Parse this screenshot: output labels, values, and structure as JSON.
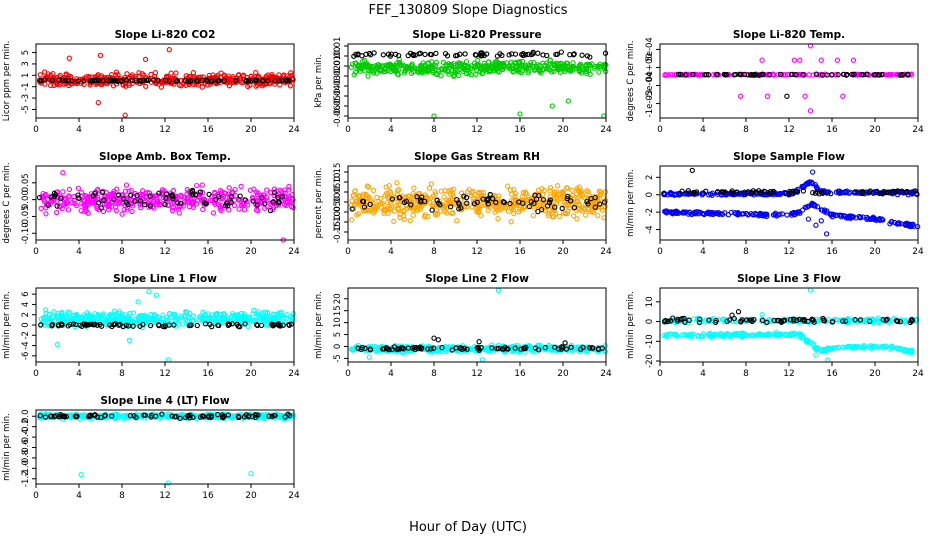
{
  "figure": {
    "title": "FEF_130809  Slope Diagnostics",
    "xlabel": "Hour of Day (UTC)"
  },
  "chart_data": [
    {
      "type": "scatter",
      "title": "Slope Li-820 CO2",
      "ylabel": "Licor ppm per min.",
      "xlim": [
        0,
        24
      ],
      "ylim": [
        -6.5,
        6.5
      ],
      "yticks": [
        "-5",
        "-3",
        "-1",
        "1",
        "3",
        "5"
      ],
      "ytick_values": [
        -5,
        -3,
        -1,
        1,
        3,
        5
      ],
      "xticks": [
        0,
        4,
        8,
        12,
        16,
        20,
        24
      ],
      "series": [
        {
          "color": "#ff0000",
          "model": {
            "kind": "band",
            "base": 0.2,
            "amp": 1.6,
            "n": 420,
            "outliers": [
              [
                6.0,
                4.5
              ],
              [
                8.3,
                -6.0
              ],
              [
                12.4,
                5.5
              ],
              [
                5.8,
                -3.8
              ],
              [
                10.2,
                3.8
              ],
              [
                3.1,
                4.0
              ]
            ]
          }
        },
        {
          "color": "#000000",
          "model": {
            "kind": "band",
            "base": 0.05,
            "amp": 0.15,
            "n": 80
          }
        }
      ]
    },
    {
      "type": "scatter",
      "title": "Slope Li-820 Pressure",
      "ylabel": "kPa per min.",
      "xlim": [
        0,
        24
      ],
      "ylim": [
        -0.062,
        0.012
      ],
      "yticks": [
        "-0.06",
        "-0.05",
        "-0.04",
        "-0.03",
        "-0.02",
        "-0.01",
        "0.00",
        "0.01"
      ],
      "ytick_values": [
        -0.06,
        -0.05,
        -0.04,
        -0.03,
        -0.02,
        -0.01,
        0.0,
        0.01
      ],
      "xticks": [
        0,
        4,
        8,
        12,
        16,
        20,
        24
      ],
      "series": [
        {
          "color": "#00cc00",
          "model": {
            "kind": "band",
            "base": -0.012,
            "amp": 0.01,
            "n": 420,
            "outliers": [
              [
                8.0,
                -0.06
              ],
              [
                16.0,
                -0.058
              ],
              [
                23.8,
                -0.06
              ],
              [
                19.0,
                -0.05
              ],
              [
                20.5,
                -0.045
              ]
            ]
          }
        },
        {
          "color": "#000000",
          "model": {
            "kind": "band",
            "base": 0.0015,
            "amp": 0.003,
            "n": 70
          }
        }
      ]
    },
    {
      "type": "scatter",
      "title": "Slope Li-820 Temp.",
      "ylabel": "degrees C per min.",
      "xlim": [
        0,
        24
      ],
      "ylim": [
        -0.0014,
        0.00065
      ],
      "yticks": [
        "-1e-03",
        "-5e-04",
        "0e+00",
        "5e-04"
      ],
      "ytick_values": [
        -0.001,
        -0.0005,
        0.0,
        0.0005
      ],
      "xticks": [
        0,
        4,
        8,
        12,
        16,
        20,
        24
      ],
      "series": [
        {
          "color": "#ff00ff",
          "model": {
            "kind": "band",
            "base": -0.0002,
            "amp": 2e-05,
            "n": 140,
            "outliers": [
              [
                9.5,
                0.0002
              ],
              [
                12.5,
                0.0002
              ],
              [
                13.0,
                0.0002
              ],
              [
                15.0,
                0.0002
              ],
              [
                16.5,
                0.0002
              ],
              [
                18.0,
                0.0002
              ],
              [
                7.5,
                -0.0008
              ],
              [
                10.0,
                -0.0008
              ],
              [
                14.0,
                -0.0012
              ],
              [
                17.0,
                -0.0008
              ],
              [
                14.0,
                0.0006
              ],
              [
                13.5,
                -0.0008
              ]
            ]
          }
        },
        {
          "color": "#000000",
          "model": {
            "kind": "band",
            "base": -0.0002,
            "amp": 2e-05,
            "n": 60,
            "outliers": [
              [
                11.8,
                -0.0008
              ]
            ]
          }
        }
      ]
    },
    {
      "type": "scatter",
      "title": "Slope Amb. Box Temp.",
      "ylabel": "degrees C per min.",
      "xlim": [
        0,
        24
      ],
      "ylim": [
        -0.12,
        0.1
      ],
      "yticks": [
        "-0.10",
        "-0.05",
        "0.00",
        "0.05"
      ],
      "ytick_values": [
        -0.1,
        -0.05,
        0.0,
        0.05
      ],
      "xticks": [
        0,
        4,
        8,
        12,
        16,
        20,
        24
      ],
      "series": [
        {
          "color": "#ff00ff",
          "model": {
            "kind": "band",
            "base": 0.0,
            "amp": 0.05,
            "n": 420,
            "outliers": [
              [
                23.0,
                -0.12
              ],
              [
                2.5,
                0.08
              ]
            ]
          }
        },
        {
          "color": "#000000",
          "model": {
            "kind": "band",
            "base": 0.0,
            "amp": 0.04,
            "n": 70
          }
        }
      ]
    },
    {
      "type": "scatter",
      "title": "Slope Gas Stream RH",
      "ylabel": "percent per min.",
      "xlim": [
        0,
        24
      ],
      "ylim": [
        -0.19,
        0.18
      ],
      "yticks": [
        "-0.15",
        "-0.10",
        "-0.05",
        "0.00",
        "0.05",
        "0.10",
        "0.15"
      ],
      "ytick_values": [
        -0.15,
        -0.1,
        -0.05,
        0.0,
        0.05,
        0.1,
        0.15
      ],
      "xticks": [
        0,
        4,
        8,
        12,
        16,
        20,
        24
      ],
      "series": [
        {
          "color": "#ffa500",
          "model": {
            "kind": "band",
            "base": 0.0,
            "amp": 0.11,
            "n": 520
          }
        },
        {
          "color": "#000000",
          "model": {
            "kind": "band",
            "base": 0.0,
            "amp": 0.06,
            "n": 70
          }
        }
      ]
    },
    {
      "type": "scatter",
      "title": "Slope Sample Flow",
      "ylabel": "ml/min per min.",
      "xlim": [
        0,
        24
      ],
      "ylim": [
        -5.2,
        3.3
      ],
      "yticks": [
        "-4",
        "-2",
        "0",
        "2"
      ],
      "ytick_values": [
        -4,
        -2,
        0,
        2
      ],
      "xticks": [
        0,
        4,
        8,
        12,
        16,
        20,
        24
      ],
      "series": [
        {
          "color": "#0000ff",
          "model": {
            "kind": "line",
            "points": [
              [
                0,
                0.1
              ],
              [
                12,
                0.1
              ],
              [
                13,
                0.6
              ],
              [
                14,
                1.5
              ],
              [
                15,
                0.3
              ],
              [
                24,
                0.2
              ]
            ],
            "amp": 0.25,
            "n": 230
          }
        },
        {
          "color": "#0000ff",
          "model": {
            "kind": "line",
            "points": [
              [
                0,
                -2.0
              ],
              [
                12,
                -2.3
              ],
              [
                13,
                -2.0
              ],
              [
                14,
                -1.0
              ],
              [
                16,
                -2.3
              ],
              [
                20,
                -2.8
              ],
              [
                22,
                -3.3
              ],
              [
                24,
                -3.6
              ]
            ],
            "amp": 0.25,
            "n": 220,
            "outliers": [
              [
                14.2,
                2.6
              ],
              [
                15.5,
                -4.5
              ],
              [
                15.0,
                -3.0
              ],
              [
                13.8,
                -2.8
              ],
              [
                14.5,
                -3.5
              ]
            ]
          }
        },
        {
          "color": "#000000",
          "model": {
            "kind": "band",
            "base": 0.3,
            "amp": 0.3,
            "n": 70,
            "outliers": [
              [
                3.0,
                2.8
              ]
            ]
          }
        }
      ]
    },
    {
      "type": "scatter",
      "title": "Slope Line 1 Flow",
      "ylabel": "ml/min per min.",
      "xlim": [
        0,
        24
      ],
      "ylim": [
        -7.2,
        7.2
      ],
      "yticks": [
        "-6",
        "-4",
        "-2",
        "0",
        "2",
        "4",
        "6"
      ],
      "ytick_values": [
        -6,
        -4,
        -2,
        0,
        2,
        4,
        6
      ],
      "xticks": [
        0,
        4,
        8,
        12,
        16,
        20,
        24
      ],
      "series": [
        {
          "color": "#00ffff",
          "model": {
            "kind": "band",
            "base": 1.2,
            "amp": 2.0,
            "n": 420,
            "outliers": [
              [
                10.5,
                6.5
              ],
              [
                11.2,
                5.8
              ],
              [
                12.3,
                -6.8
              ],
              [
                2.0,
                -3.8
              ],
              [
                8.7,
                -3.0
              ],
              [
                9.5,
                4.5
              ]
            ]
          }
        },
        {
          "color": "#000000",
          "model": {
            "kind": "band",
            "base": 0.0,
            "amp": 0.5,
            "n": 80
          }
        }
      ]
    },
    {
      "type": "scatter",
      "title": "Slope Line 2 Flow",
      "ylabel": "ml/min per min.",
      "xlim": [
        0,
        24
      ],
      "ylim": [
        -6.5,
        24.5
      ],
      "yticks": [
        "-5",
        "0",
        "5",
        "10",
        "15",
        "20"
      ],
      "ytick_values": [
        -5,
        0,
        5,
        10,
        15,
        20
      ],
      "xticks": [
        0,
        4,
        8,
        12,
        16,
        20,
        24
      ],
      "series": [
        {
          "color": "#00ffff",
          "model": {
            "kind": "band",
            "base": -1.0,
            "amp": 1.8,
            "n": 420,
            "outliers": [
              [
                14.0,
                23.5
              ],
              [
                12.5,
                -5.5
              ],
              [
                2.0,
                -4.5
              ]
            ]
          }
        },
        {
          "color": "#000000",
          "model": {
            "kind": "band",
            "base": -0.8,
            "amp": 1.0,
            "n": 80,
            "outliers": [
              [
                8.0,
                3.5
              ],
              [
                8.4,
                2.8
              ],
              [
                12.2,
                2.0
              ],
              [
                20.2,
                1.5
              ]
            ]
          }
        }
      ]
    },
    {
      "type": "scatter",
      "title": "Slope Line 3 Flow",
      "ylabel": "ml/min per min.",
      "xlim": [
        0,
        24
      ],
      "ylim": [
        -20.5,
        17
      ],
      "yticks": [
        "-20",
        "-10",
        "0",
        "10"
      ],
      "ytick_values": [
        -20,
        -10,
        0,
        10
      ],
      "xticks": [
        0,
        4,
        8,
        12,
        16,
        20,
        24
      ],
      "series": [
        {
          "color": "#00ffff",
          "model": {
            "kind": "line",
            "points": [
              [
                0,
                0.5
              ],
              [
                24,
                0.5
              ]
            ],
            "amp": 1.5,
            "n": 180
          }
        },
        {
          "color": "#00ffff",
          "model": {
            "kind": "line",
            "points": [
              [
                0,
                -7.0
              ],
              [
                13,
                -6.5
              ],
              [
                14,
                -11.0
              ],
              [
                15,
                -15.0
              ],
              [
                16,
                -13.5
              ],
              [
                20,
                -12.5
              ],
              [
                22,
                -13.5
              ],
              [
                23,
                -15.0
              ]
            ],
            "amp": 1.2,
            "n": 240,
            "outliers": [
              [
                14.0,
                16.0
              ],
              [
                15.6,
                -19.5
              ],
              [
                14.5,
                -17.0
              ],
              [
                9.5,
                3.5
              ],
              [
                11.0,
                0.5
              ]
            ]
          }
        },
        {
          "color": "#000000",
          "model": {
            "kind": "band",
            "base": 0.5,
            "amp": 1.5,
            "n": 75,
            "outliers": [
              [
                7.3,
                5.0
              ],
              [
                6.7,
                3.2
              ]
            ]
          }
        }
      ]
    },
    {
      "type": "scatter",
      "title": "Slope Line 4 (LT) Flow",
      "ylabel": "ml/min per min.",
      "xlim": [
        0,
        24
      ],
      "ylim": [
        -1.3,
        0.12
      ],
      "yticks": [
        "-1.2",
        "-1.0",
        "-0.8",
        "-0.6",
        "-0.4",
        "-0.2",
        "0.0"
      ],
      "ytick_values": [
        -1.2,
        -1.0,
        -0.8,
        -0.6,
        -0.4,
        -0.2,
        0.0
      ],
      "xticks": [
        0,
        4,
        8,
        12,
        16,
        20,
        24
      ],
      "series": [
        {
          "color": "#00ffff",
          "model": {
            "kind": "band",
            "base": 0.0,
            "amp": 0.06,
            "n": 420,
            "outliers": [
              [
                4.2,
                -1.12
              ],
              [
                12.3,
                -1.28
              ],
              [
                20.0,
                -1.1
              ]
            ]
          }
        },
        {
          "color": "#000000",
          "model": {
            "kind": "band",
            "base": 0.0,
            "amp": 0.05,
            "n": 80
          }
        }
      ]
    }
  ]
}
